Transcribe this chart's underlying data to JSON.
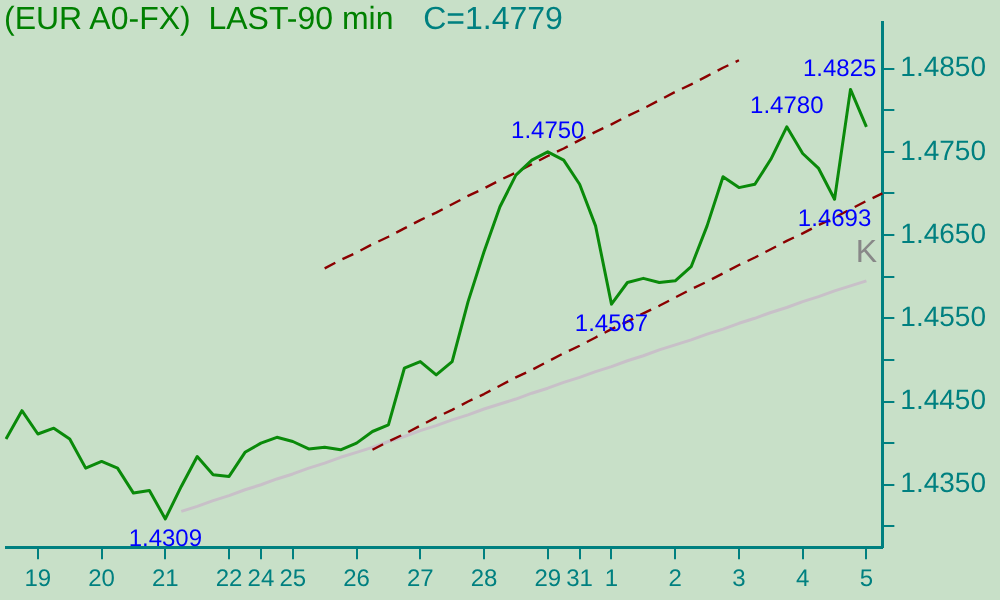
{
  "chart_data": {
    "type": "line",
    "title": "(EUR A0-FX)  LAST-90 min",
    "subtitle": "C=1.4779",
    "categories": [
      null,
      null,
      "19",
      null,
      null,
      null,
      "20",
      null,
      null,
      null,
      "21",
      null,
      null,
      null,
      "22",
      null,
      "24",
      null,
      "25",
      null,
      null,
      null,
      "26",
      null,
      null,
      null,
      "27",
      null,
      null,
      null,
      "28",
      null,
      null,
      null,
      "29",
      null,
      "31",
      null,
      "1",
      null,
      null,
      null,
      "2",
      null,
      null,
      null,
      "3",
      null,
      null,
      null,
      "4",
      null,
      null,
      null,
      "5",
      null
    ],
    "ylim": [
      1.4275,
      1.4905
    ],
    "yticks": [
      {
        "value": 1.43,
        "label": null
      },
      {
        "value": 1.435,
        "label": "1.4350"
      },
      {
        "value": 1.44,
        "label": null
      },
      {
        "value": 1.445,
        "label": "1.4450"
      },
      {
        "value": 1.45,
        "label": null
      },
      {
        "value": 1.455,
        "label": "1.4550"
      },
      {
        "value": 1.46,
        "label": null
      },
      {
        "value": 1.465,
        "label": "1.4650"
      },
      {
        "value": 1.47,
        "label": null
      },
      {
        "value": 1.475,
        "label": "1.4750"
      },
      {
        "value": 1.48,
        "label": null
      },
      {
        "value": 1.485,
        "label": "1.4850"
      }
    ],
    "grid": false,
    "marker": "none",
    "series": [
      {
        "color": "#0a8a0a",
        "line_style": "solid",
        "values": [
          1.4405,
          1.4439,
          1.4411,
          1.4418,
          1.4405,
          1.437,
          1.4378,
          1.437,
          1.434,
          1.4343,
          1.4309,
          1.4348,
          1.4384,
          1.4362,
          1.436,
          1.4389,
          1.44,
          1.4407,
          1.4402,
          1.4393,
          1.4395,
          1.4392,
          1.44,
          1.4414,
          1.4422,
          1.449,
          1.4498,
          1.4482,
          1.4498,
          1.457,
          1.463,
          1.4684,
          1.4722,
          1.474,
          1.475,
          1.474,
          1.4711,
          1.4661,
          1.4567,
          1.4593,
          1.4598,
          1.4593,
          1.4595,
          1.4612,
          1.4661,
          1.472,
          1.4707,
          1.4711,
          1.4741,
          1.478,
          1.4748,
          1.473,
          1.4693,
          1.4825,
          1.478,
          null
        ]
      },
      {
        "color": "#8b0000",
        "line_style": "dashed",
        "values": [
          null,
          null,
          null,
          null,
          null,
          null,
          null,
          null,
          null,
          null,
          null,
          null,
          null,
          null,
          null,
          null,
          null,
          null,
          null,
          null,
          1.461,
          1.462,
          1.4629,
          1.4639,
          1.4648,
          1.4658,
          1.4668,
          1.4677,
          1.4687,
          1.4697,
          1.4706,
          1.4716,
          1.4725,
          1.4735,
          1.4745,
          1.4754,
          1.4764,
          1.4774,
          1.4783,
          1.4793,
          1.4802,
          1.4812,
          1.4822,
          1.4831,
          1.4841,
          1.4851,
          1.486,
          null,
          null,
          null,
          null,
          null,
          null,
          null,
          null,
          null
        ]
      },
      {
        "color": "#8b0000",
        "line_style": "dashed",
        "values": [
          null,
          null,
          null,
          null,
          null,
          null,
          null,
          null,
          null,
          null,
          null,
          null,
          null,
          null,
          null,
          null,
          null,
          null,
          null,
          null,
          null,
          null,
          null,
          1.4392,
          1.4402,
          1.4411,
          1.4421,
          1.4431,
          1.444,
          1.445,
          1.4459,
          1.4469,
          1.4479,
          1.4488,
          1.4498,
          1.4508,
          1.4517,
          1.4527,
          1.4537,
          1.4546,
          1.4556,
          1.4565,
          1.4575,
          1.4585,
          1.4594,
          1.4604,
          1.4614,
          1.4623,
          1.4633,
          1.4643,
          1.4652,
          1.4662,
          1.4671,
          1.4681,
          1.4691,
          1.47
        ]
      },
      {
        "color": "#c8c0c8",
        "line_style": "solid",
        "values": [
          null,
          null,
          null,
          null,
          null,
          null,
          null,
          null,
          null,
          null,
          null,
          1.4318,
          1.4324,
          1.4331,
          1.4337,
          1.4344,
          1.435,
          1.4357,
          1.4363,
          1.437,
          1.4376,
          1.4383,
          1.4389,
          1.4395,
          1.4402,
          1.4408,
          1.4415,
          1.4421,
          1.4428,
          1.4434,
          1.4441,
          1.4447,
          1.4453,
          1.446,
          1.4466,
          1.4473,
          1.4479,
          1.4486,
          1.4492,
          1.4499,
          1.4505,
          1.4512,
          1.4518,
          1.4524,
          1.4531,
          1.4537,
          1.4544,
          1.455,
          1.4557,
          1.4563,
          1.457,
          1.4576,
          1.4583,
          1.4589,
          1.4595,
          null
        ]
      }
    ],
    "annotations": [
      {
        "text": "1.4309",
        "x": "21",
        "y": 1.4309
      },
      {
        "text": "1.4750",
        "x": "29",
        "y": 1.475
      },
      {
        "text": "1.4567",
        "x": "1",
        "y": 1.4567
      },
      {
        "text": "1.4780",
        "y": 1.478
      },
      {
        "text": "1.4825",
        "y": 1.4825
      },
      {
        "text": "1.4693",
        "y": 1.4693
      },
      "K"
    ]
  }
}
